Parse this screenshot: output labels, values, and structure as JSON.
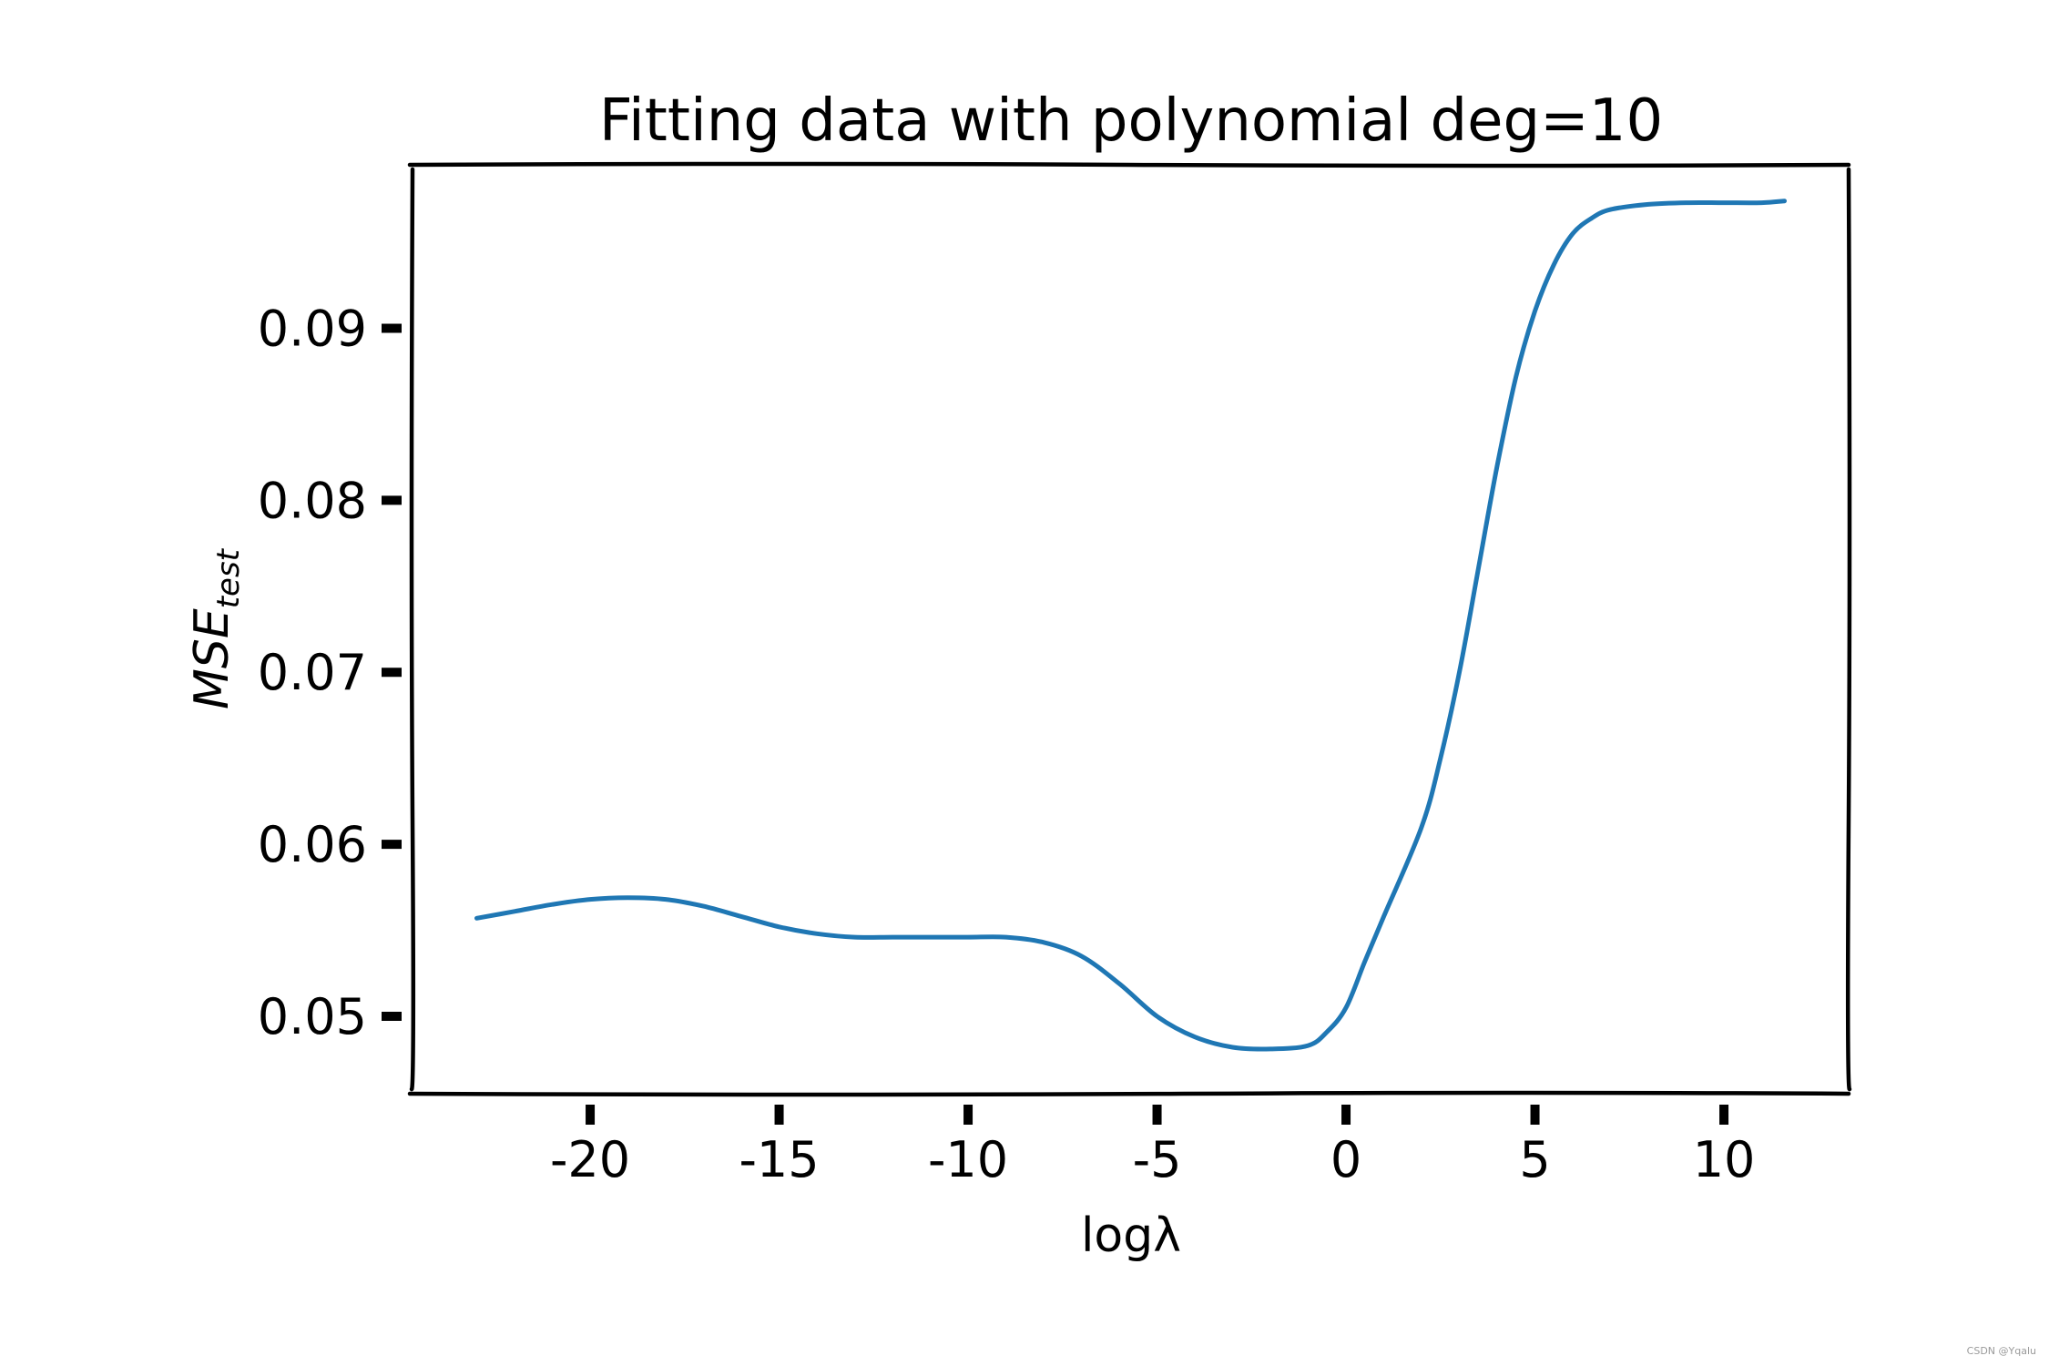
{
  "watermark": "CSDN @Yqalu",
  "chart_data": {
    "type": "line",
    "title": "Fitting data with polynomial deg=10",
    "xlabel": "logλ",
    "ylabel": {
      "main": "MSE",
      "subscript": "test"
    },
    "xlim": [
      -24.7,
      13.3
    ],
    "ylim": [
      0.0455,
      0.0995
    ],
    "xticks": [
      -20,
      -15,
      -10,
      -5,
      0,
      5,
      10
    ],
    "xtick_labels": [
      "-20",
      "-15",
      "-10",
      "-5",
      "0",
      "5",
      "10"
    ],
    "yticks": [
      0.05,
      0.06,
      0.07,
      0.08,
      0.09
    ],
    "ytick_labels": [
      "0.05",
      "0.06",
      "0.07",
      "0.08",
      "0.09"
    ],
    "grid": false,
    "line_color": "#1f77b4",
    "series": [
      {
        "x": [
          -23.0,
          -22.0,
          -21.0,
          -20.0,
          -19.0,
          -18.0,
          -17.0,
          -16.0,
          -15.0,
          -14.0,
          -13.0,
          -12.0,
          -11.0,
          -10.0,
          -9.0,
          -8.0,
          -7.0,
          -6.0,
          -5.0,
          -4.0,
          -3.0,
          -2.0,
          -1.0,
          -0.5,
          0.0,
          0.5,
          1.0,
          2.0,
          2.5,
          3.0,
          3.5,
          4.0,
          4.5,
          5.0,
          5.5,
          6.0,
          6.5,
          7.0,
          8.0,
          9.0,
          10.0,
          11.0,
          11.6
        ],
        "y": [
          0.0557,
          0.0561,
          0.0565,
          0.0568,
          0.0569,
          0.0568,
          0.0564,
          0.0558,
          0.0552,
          0.0548,
          0.0546,
          0.0546,
          0.0546,
          0.0546,
          0.0546,
          0.0543,
          0.0535,
          0.0519,
          0.05,
          0.0488,
          0.0482,
          0.0481,
          0.0483,
          0.0491,
          0.0505,
          0.0532,
          0.0558,
          0.061,
          0.065,
          0.07,
          0.076,
          0.082,
          0.0872,
          0.091,
          0.0937,
          0.0955,
          0.0964,
          0.0969,
          0.0972,
          0.0973,
          0.0973,
          0.0973,
          0.0974
        ]
      }
    ]
  }
}
